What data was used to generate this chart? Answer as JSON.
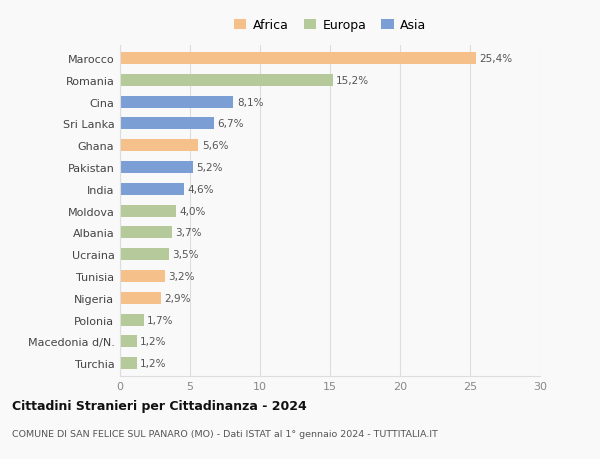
{
  "countries": [
    "Marocco",
    "Romania",
    "Cina",
    "Sri Lanka",
    "Ghana",
    "Pakistan",
    "India",
    "Moldova",
    "Albania",
    "Ucraina",
    "Tunisia",
    "Nigeria",
    "Polonia",
    "Macedonia d/N.",
    "Turchia"
  ],
  "values": [
    25.4,
    15.2,
    8.1,
    6.7,
    5.6,
    5.2,
    4.6,
    4.0,
    3.7,
    3.5,
    3.2,
    2.9,
    1.7,
    1.2,
    1.2
  ],
  "labels": [
    "25,4%",
    "15,2%",
    "8,1%",
    "6,7%",
    "5,6%",
    "5,2%",
    "4,6%",
    "4,0%",
    "3,7%",
    "3,5%",
    "3,2%",
    "2,9%",
    "1,7%",
    "1,2%",
    "1,2%"
  ],
  "continents": [
    "Africa",
    "Europa",
    "Asia",
    "Asia",
    "Africa",
    "Asia",
    "Asia",
    "Europa",
    "Europa",
    "Europa",
    "Africa",
    "Africa",
    "Europa",
    "Europa",
    "Europa"
  ],
  "colors": {
    "Africa": "#F5C08A",
    "Europa": "#B5C99A",
    "Asia": "#7B9FD4"
  },
  "legend_labels": [
    "Africa",
    "Europa",
    "Asia"
  ],
  "legend_colors": [
    "#F5C08A",
    "#B5C99A",
    "#7B9FD4"
  ],
  "xlim": [
    0,
    30
  ],
  "xticks": [
    0,
    5,
    10,
    15,
    20,
    25,
    30
  ],
  "title": "Cittadini Stranieri per Cittadinanza - 2024",
  "subtitle": "COMUNE DI SAN FELICE SUL PANARO (MO) - Dati ISTAT al 1° gennaio 2024 - TUTTITALIA.IT",
  "background_color": "#f9f9f9",
  "grid_color": "#dddddd",
  "bar_height": 0.55
}
